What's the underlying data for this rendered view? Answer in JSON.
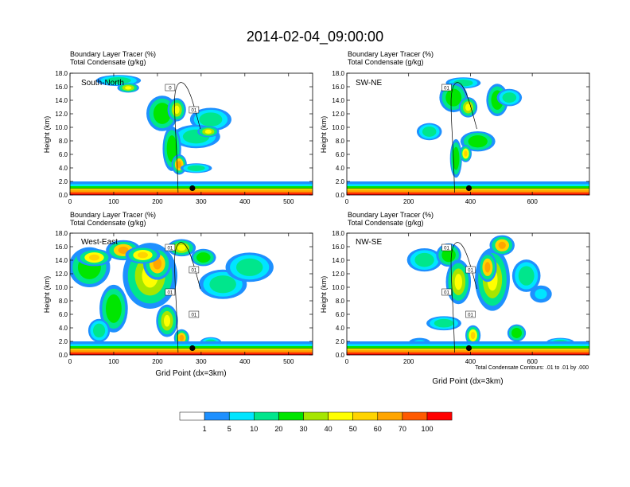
{
  "title": "2014-02-04_09:00:00",
  "colors": {
    "contour_levels": [
      "#ffffff",
      "#1e90ff",
      "#00e5ff",
      "#00e68c",
      "#00e600",
      "#a6e600",
      "#ffff00",
      "#ffd400",
      "#ffa500",
      "#ff5a00",
      "#ff0000"
    ],
    "lines": "#000000"
  },
  "colorbar": {
    "labels": [
      "1",
      "5",
      "10",
      "20",
      "30",
      "40",
      "50",
      "60",
      "70",
      "100"
    ]
  },
  "footnote": "Total Condensate Contours: .01 to .01 by .000",
  "chart_data": [
    {
      "type": "heatmap",
      "name": "South-North",
      "subtitle_1": "Boundary Layer Tracer   (%)",
      "subtitle_2": "Total Condensate   (g/kg)",
      "xlabel": "",
      "ylabel": "Height (km)",
      "xlim": [
        0,
        555
      ],
      "ylim": [
        0,
        18
      ],
      "x_ticks": [
        "0",
        "100",
        "200",
        "300",
        "400",
        "500"
      ],
      "x_tick_values": [
        0,
        100,
        200,
        300,
        400,
        500
      ],
      "y_ticks": [
        "0.0",
        "2.0",
        "4.0",
        "6.0",
        "8.0",
        "10.0",
        "12.0",
        "14.0",
        "16.0",
        "18.0"
      ],
      "marker": {
        "x": 280,
        "y": 1.0
      },
      "contour_labels": [
        "0",
        "01"
      ]
    },
    {
      "type": "heatmap",
      "name": "SW-NE",
      "subtitle_1": "Boundary Layer Tracer   (%)",
      "subtitle_2": "Total Condensate   (g/kg)",
      "xlabel": "",
      "ylabel": "Height (km)",
      "xlim": [
        0,
        785
      ],
      "ylim": [
        0,
        18
      ],
      "x_ticks": [
        "0",
        "200",
        "400",
        "600"
      ],
      "x_tick_values": [
        0,
        200,
        400,
        600
      ],
      "y_ticks": [
        "0.0",
        "2.0",
        "4.0",
        "6.0",
        "8.0",
        "10.0",
        "12.0",
        "14.0",
        "16.0",
        "18.0"
      ],
      "marker": {
        "x": 395,
        "y": 1.0
      },
      "contour_labels": [
        "01"
      ]
    },
    {
      "type": "heatmap",
      "name": "West-East",
      "subtitle_1": "Boundary Layer Tracer   (%)",
      "subtitle_2": "Total Condensate   (g/kg)",
      "xlabel": "Grid Point (dx=3km)",
      "ylabel": "Height (km)",
      "xlim": [
        0,
        555
      ],
      "ylim": [
        0,
        18
      ],
      "x_ticks": [
        "0",
        "100",
        "200",
        "300",
        "400",
        "500"
      ],
      "x_tick_values": [
        0,
        100,
        200,
        300,
        400,
        500
      ],
      "y_ticks": [
        "0.0",
        "2.0",
        "4.0",
        "6.0",
        "8.0",
        "10.0",
        "12.0",
        "14.0",
        "16.0",
        "18.0"
      ],
      "marker": {
        "x": 280,
        "y": 1.0
      },
      "contour_labels": [
        "01",
        "01",
        "01",
        "01"
      ]
    },
    {
      "type": "heatmap",
      "name": "NW-SE",
      "subtitle_1": "Boundary Layer Tracer   (%)",
      "subtitle_2": "Total Condensate   (g/kg)",
      "xlabel": "Grid Point (dx=3km)",
      "ylabel": "Height (km)",
      "xlim": [
        0,
        785
      ],
      "ylim": [
        0,
        18
      ],
      "x_ticks": [
        "0",
        "200",
        "400",
        "600"
      ],
      "x_tick_values": [
        0,
        200,
        400,
        600
      ],
      "y_ticks": [
        "0.0",
        "2.0",
        "4.0",
        "6.0",
        "8.0",
        "10.0",
        "12.0",
        "14.0",
        "16.0",
        "18.0"
      ],
      "marker": {
        "x": 395,
        "y": 1.0
      },
      "contour_labels": [
        "01",
        "01",
        "01",
        "01"
      ]
    }
  ]
}
